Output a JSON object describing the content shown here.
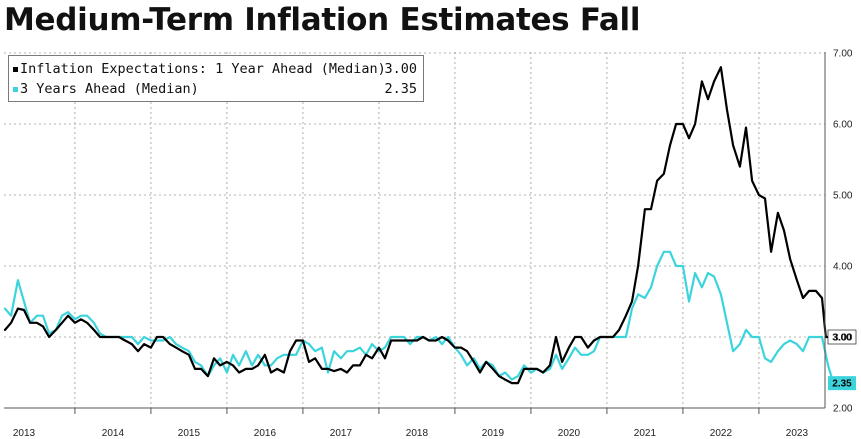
{
  "title": "Medium-Term Inflation Estimates Fall",
  "colors": {
    "one_year": "#000000",
    "three_year": "#3cd4dc",
    "grid": "#9a9a9a",
    "background": "#ffffff"
  },
  "legend": [
    {
      "label": "Inflation Expectations: 1 Year Ahead (Median)",
      "value": "3.00"
    },
    {
      "label": "3 Years Ahead (Median)",
      "value": "2.35"
    }
  ],
  "chart_data": {
    "type": "line",
    "title": "Medium-Term Inflation Estimates Fall",
    "xlabel": "",
    "ylabel": "",
    "xlim": [
      2013.0,
      2023.8
    ],
    "ylim": [
      2.0,
      7.0
    ],
    "y_ticks": [
      "2.00",
      "3.00",
      "4.00",
      "5.00",
      "6.00",
      "7.00"
    ],
    "x_ticks": [
      "2013",
      "2014",
      "2015",
      "2016",
      "2017",
      "2018",
      "2019",
      "2020",
      "2021",
      "2022",
      "2023"
    ],
    "y_axis_position": "right",
    "grid": "dashed",
    "legend_position": "top-left",
    "series": [
      {
        "name": "Inflation Expectations: 1 Year Ahead (Median)",
        "color": "#000000",
        "last_value_label": "3.00",
        "points": [
          [
            2013.0,
            3.1
          ],
          [
            2013.08,
            3.2
          ],
          [
            2013.17,
            3.4
          ],
          [
            2013.25,
            3.38
          ],
          [
            2013.33,
            3.2
          ],
          [
            2013.42,
            3.2
          ],
          [
            2013.5,
            3.15
          ],
          [
            2013.58,
            3.0
          ],
          [
            2013.67,
            3.1
          ],
          [
            2013.75,
            3.2
          ],
          [
            2013.83,
            3.3
          ],
          [
            2013.92,
            3.2
          ],
          [
            2014.0,
            3.25
          ],
          [
            2014.08,
            3.2
          ],
          [
            2014.17,
            3.1
          ],
          [
            2014.25,
            3.0
          ],
          [
            2014.33,
            3.0
          ],
          [
            2014.42,
            3.0
          ],
          [
            2014.5,
            3.0
          ],
          [
            2014.58,
            2.95
          ],
          [
            2014.67,
            2.9
          ],
          [
            2014.75,
            2.8
          ],
          [
            2014.83,
            2.9
          ],
          [
            2014.92,
            2.85
          ],
          [
            2015.0,
            3.0
          ],
          [
            2015.08,
            3.0
          ],
          [
            2015.17,
            2.9
          ],
          [
            2015.25,
            2.85
          ],
          [
            2015.33,
            2.8
          ],
          [
            2015.42,
            2.75
          ],
          [
            2015.5,
            2.55
          ],
          [
            2015.58,
            2.55
          ],
          [
            2015.67,
            2.45
          ],
          [
            2015.75,
            2.7
          ],
          [
            2015.83,
            2.6
          ],
          [
            2015.92,
            2.65
          ],
          [
            2016.0,
            2.6
          ],
          [
            2016.08,
            2.5
          ],
          [
            2016.17,
            2.55
          ],
          [
            2016.25,
            2.55
          ],
          [
            2016.33,
            2.6
          ],
          [
            2016.42,
            2.75
          ],
          [
            2016.5,
            2.5
          ],
          [
            2016.58,
            2.55
          ],
          [
            2016.67,
            2.5
          ],
          [
            2016.75,
            2.8
          ],
          [
            2016.83,
            2.95
          ],
          [
            2016.92,
            2.95
          ],
          [
            2017.0,
            2.65
          ],
          [
            2017.08,
            2.7
          ],
          [
            2017.17,
            2.55
          ],
          [
            2017.25,
            2.55
          ],
          [
            2017.33,
            2.52
          ],
          [
            2017.42,
            2.55
          ],
          [
            2017.5,
            2.5
          ],
          [
            2017.58,
            2.6
          ],
          [
            2017.67,
            2.6
          ],
          [
            2017.75,
            2.75
          ],
          [
            2017.83,
            2.7
          ],
          [
            2017.92,
            2.85
          ],
          [
            2018.0,
            2.7
          ],
          [
            2018.08,
            2.95
          ],
          [
            2018.17,
            2.95
          ],
          [
            2018.25,
            2.95
          ],
          [
            2018.33,
            2.95
          ],
          [
            2018.42,
            2.95
          ],
          [
            2018.5,
            3.0
          ],
          [
            2018.58,
            2.95
          ],
          [
            2018.67,
            2.95
          ],
          [
            2018.75,
            3.0
          ],
          [
            2018.83,
            2.95
          ],
          [
            2018.92,
            2.85
          ],
          [
            2019.0,
            2.85
          ],
          [
            2019.08,
            2.8
          ],
          [
            2019.17,
            2.65
          ],
          [
            2019.25,
            2.5
          ],
          [
            2019.33,
            2.65
          ],
          [
            2019.42,
            2.55
          ],
          [
            2019.5,
            2.45
          ],
          [
            2019.58,
            2.4
          ],
          [
            2019.67,
            2.35
          ],
          [
            2019.75,
            2.35
          ],
          [
            2019.83,
            2.55
          ],
          [
            2019.92,
            2.55
          ],
          [
            2020.0,
            2.55
          ],
          [
            2020.08,
            2.5
          ],
          [
            2020.17,
            2.6
          ],
          [
            2020.25,
            3.0
          ],
          [
            2020.33,
            2.65
          ],
          [
            2020.42,
            2.85
          ],
          [
            2020.5,
            3.0
          ],
          [
            2020.58,
            3.0
          ],
          [
            2020.67,
            2.85
          ],
          [
            2020.75,
            2.95
          ],
          [
            2020.83,
            3.0
          ],
          [
            2020.92,
            3.0
          ],
          [
            2021.0,
            3.0
          ],
          [
            2021.08,
            3.1
          ],
          [
            2021.17,
            3.3
          ],
          [
            2021.25,
            3.5
          ],
          [
            2021.33,
            4.0
          ],
          [
            2021.42,
            4.8
          ],
          [
            2021.5,
            4.8
          ],
          [
            2021.58,
            5.2
          ],
          [
            2021.67,
            5.3
          ],
          [
            2021.75,
            5.7
          ],
          [
            2021.83,
            6.0
          ],
          [
            2021.92,
            6.0
          ],
          [
            2022.0,
            5.8
          ],
          [
            2022.08,
            6.0
          ],
          [
            2022.17,
            6.6
          ],
          [
            2022.25,
            6.35
          ],
          [
            2022.33,
            6.6
          ],
          [
            2022.42,
            6.8
          ],
          [
            2022.5,
            6.2
          ],
          [
            2022.58,
            5.7
          ],
          [
            2022.67,
            5.4
          ],
          [
            2022.75,
            5.95
          ],
          [
            2022.83,
            5.2
          ],
          [
            2022.92,
            5.0
          ],
          [
            2023.0,
            4.95
          ],
          [
            2023.08,
            4.2
          ],
          [
            2023.17,
            4.75
          ],
          [
            2023.25,
            4.5
          ],
          [
            2023.33,
            4.1
          ],
          [
            2023.42,
            3.8
          ],
          [
            2023.5,
            3.55
          ],
          [
            2023.58,
            3.65
          ],
          [
            2023.67,
            3.65
          ],
          [
            2023.75,
            3.55
          ],
          [
            2023.8,
            3.0
          ],
          [
            2023.9,
            3.0
          ]
        ]
      },
      {
        "name": "3 Years Ahead (Median)",
        "color": "#3cd4dc",
        "last_value_label": "2.35",
        "points": [
          [
            2013.0,
            3.4
          ],
          [
            2013.08,
            3.3
          ],
          [
            2013.17,
            3.8
          ],
          [
            2013.25,
            3.5
          ],
          [
            2013.33,
            3.2
          ],
          [
            2013.42,
            3.3
          ],
          [
            2013.5,
            3.3
          ],
          [
            2013.58,
            3.05
          ],
          [
            2013.67,
            3.1
          ],
          [
            2013.75,
            3.3
          ],
          [
            2013.83,
            3.35
          ],
          [
            2013.92,
            3.25
          ],
          [
            2014.0,
            3.3
          ],
          [
            2014.08,
            3.3
          ],
          [
            2014.17,
            3.2
          ],
          [
            2014.25,
            3.05
          ],
          [
            2014.33,
            3.0
          ],
          [
            2014.42,
            3.0
          ],
          [
            2014.5,
            3.0
          ],
          [
            2014.58,
            3.0
          ],
          [
            2014.67,
            3.0
          ],
          [
            2014.75,
            2.9
          ],
          [
            2014.83,
            3.0
          ],
          [
            2014.92,
            2.95
          ],
          [
            2015.0,
            2.95
          ],
          [
            2015.08,
            2.95
          ],
          [
            2015.17,
            3.0
          ],
          [
            2015.25,
            2.9
          ],
          [
            2015.33,
            2.85
          ],
          [
            2015.42,
            2.8
          ],
          [
            2015.5,
            2.65
          ],
          [
            2015.58,
            2.6
          ],
          [
            2015.67,
            2.45
          ],
          [
            2015.75,
            2.6
          ],
          [
            2015.83,
            2.7
          ],
          [
            2015.92,
            2.5
          ],
          [
            2016.0,
            2.75
          ],
          [
            2016.08,
            2.6
          ],
          [
            2016.17,
            2.8
          ],
          [
            2016.25,
            2.6
          ],
          [
            2016.33,
            2.75
          ],
          [
            2016.42,
            2.6
          ],
          [
            2016.5,
            2.6
          ],
          [
            2016.58,
            2.7
          ],
          [
            2016.67,
            2.75
          ],
          [
            2016.75,
            2.75
          ],
          [
            2016.83,
            2.75
          ],
          [
            2016.92,
            2.95
          ],
          [
            2017.0,
            2.9
          ],
          [
            2017.08,
            2.8
          ],
          [
            2017.17,
            2.85
          ],
          [
            2017.25,
            2.5
          ],
          [
            2017.33,
            2.8
          ],
          [
            2017.42,
            2.7
          ],
          [
            2017.5,
            2.8
          ],
          [
            2017.58,
            2.8
          ],
          [
            2017.67,
            2.85
          ],
          [
            2017.75,
            2.75
          ],
          [
            2017.83,
            2.9
          ],
          [
            2017.92,
            2.8
          ],
          [
            2018.0,
            2.85
          ],
          [
            2018.08,
            3.0
          ],
          [
            2018.17,
            3.0
          ],
          [
            2018.25,
            3.0
          ],
          [
            2018.33,
            2.9
          ],
          [
            2018.42,
            3.0
          ],
          [
            2018.5,
            3.0
          ],
          [
            2018.58,
            2.95
          ],
          [
            2018.67,
            3.0
          ],
          [
            2018.75,
            2.9
          ],
          [
            2018.83,
            3.0
          ],
          [
            2018.92,
            2.85
          ],
          [
            2019.0,
            2.75
          ],
          [
            2019.08,
            2.6
          ],
          [
            2019.17,
            2.7
          ],
          [
            2019.25,
            2.55
          ],
          [
            2019.33,
            2.65
          ],
          [
            2019.42,
            2.6
          ],
          [
            2019.5,
            2.45
          ],
          [
            2019.58,
            2.5
          ],
          [
            2019.67,
            2.4
          ],
          [
            2019.75,
            2.45
          ],
          [
            2019.83,
            2.6
          ],
          [
            2019.92,
            2.5
          ],
          [
            2020.0,
            2.55
          ],
          [
            2020.08,
            2.5
          ],
          [
            2020.17,
            2.55
          ],
          [
            2020.25,
            2.75
          ],
          [
            2020.33,
            2.55
          ],
          [
            2020.42,
            2.7
          ],
          [
            2020.5,
            2.85
          ],
          [
            2020.58,
            2.75
          ],
          [
            2020.67,
            2.75
          ],
          [
            2020.75,
            2.8
          ],
          [
            2020.83,
            3.0
          ],
          [
            2020.92,
            3.0
          ],
          [
            2021.0,
            3.0
          ],
          [
            2021.08,
            3.0
          ],
          [
            2021.17,
            3.0
          ],
          [
            2021.25,
            3.4
          ],
          [
            2021.33,
            3.6
          ],
          [
            2021.42,
            3.55
          ],
          [
            2021.5,
            3.7
          ],
          [
            2021.58,
            4.0
          ],
          [
            2021.67,
            4.2
          ],
          [
            2021.75,
            4.2
          ],
          [
            2021.83,
            4.0
          ],
          [
            2021.92,
            4.0
          ],
          [
            2022.0,
            3.5
          ],
          [
            2022.08,
            3.9
          ],
          [
            2022.17,
            3.7
          ],
          [
            2022.25,
            3.9
          ],
          [
            2022.33,
            3.85
          ],
          [
            2022.42,
            3.6
          ],
          [
            2022.5,
            3.2
          ],
          [
            2022.58,
            2.8
          ],
          [
            2022.67,
            2.9
          ],
          [
            2022.75,
            3.1
          ],
          [
            2022.83,
            3.0
          ],
          [
            2022.92,
            3.0
          ],
          [
            2023.0,
            2.7
          ],
          [
            2023.08,
            2.65
          ],
          [
            2023.17,
            2.8
          ],
          [
            2023.25,
            2.9
          ],
          [
            2023.33,
            2.95
          ],
          [
            2023.42,
            2.9
          ],
          [
            2023.5,
            2.8
          ],
          [
            2023.58,
            3.0
          ],
          [
            2023.67,
            3.0
          ],
          [
            2023.75,
            3.0
          ],
          [
            2023.83,
            2.6
          ],
          [
            2023.9,
            2.35
          ]
        ]
      }
    ]
  }
}
